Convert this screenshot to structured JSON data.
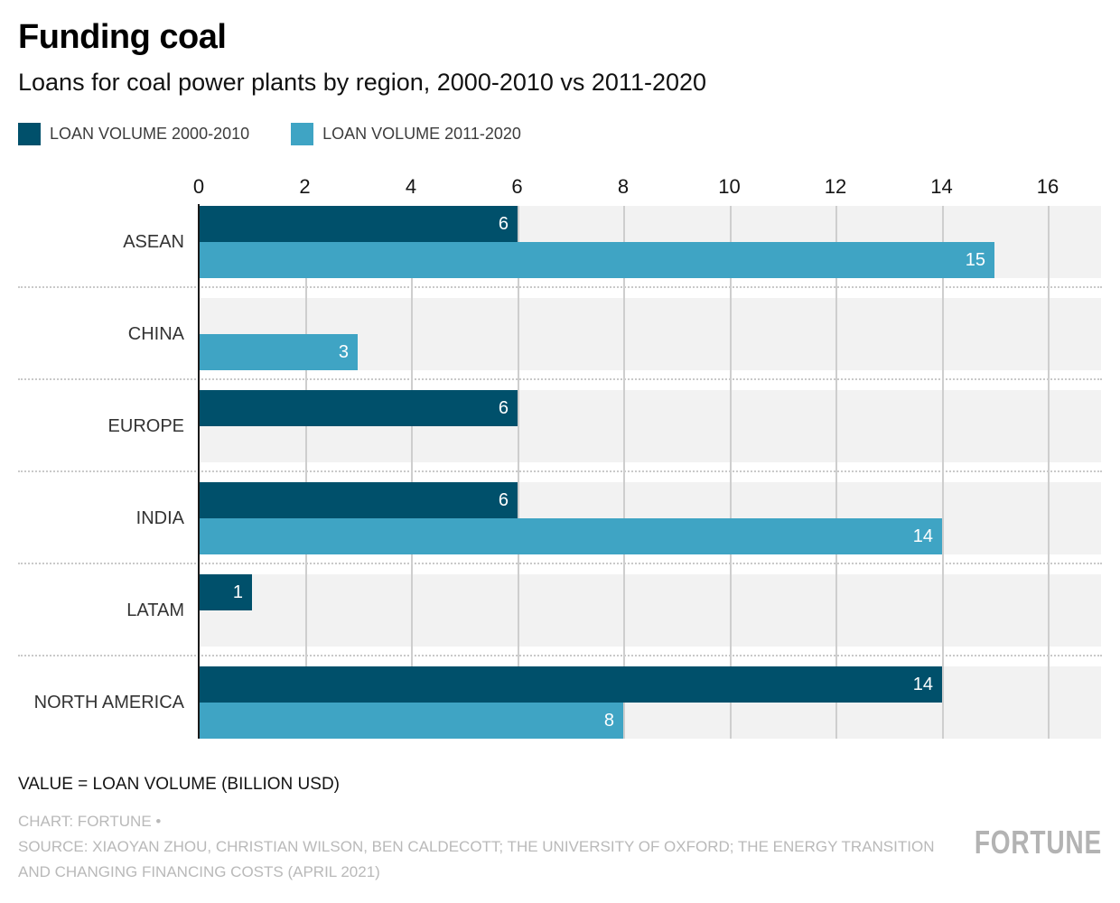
{
  "header": {
    "title": "Funding coal",
    "subtitle": "Loans for coal power plants by region, 2000-2010 vs 2011-2020"
  },
  "legend": [
    {
      "label": "LOAN VOLUME 2000-2010",
      "color": "#00506B"
    },
    {
      "label": "LOAN VOLUME 2011-2020",
      "color": "#3FA4C4"
    }
  ],
  "chart_data": {
    "type": "bar",
    "orientation": "horizontal",
    "title": "Funding coal",
    "subtitle": "Loans for coal power plants by region, 2000-2010 vs 2011-2020",
    "categories": [
      "ASEAN",
      "CHINA",
      "EUROPE",
      "INDIA",
      "LATAM",
      "NORTH AMERICA"
    ],
    "series": [
      {
        "name": "LOAN VOLUME 2000-2010",
        "color": "#00506B",
        "values": [
          6,
          0,
          6,
          6,
          1,
          14
        ]
      },
      {
        "name": "LOAN VOLUME 2011-2020",
        "color": "#3FA4C4",
        "values": [
          15,
          3,
          0,
          14,
          0,
          8
        ]
      }
    ],
    "x_ticks": [
      0,
      2,
      4,
      6,
      8,
      10,
      12,
      14,
      16
    ],
    "xlim": [
      0,
      17
    ],
    "value_unit": "BILLION USD",
    "grid": true,
    "legend_position": "top",
    "track_color": "#f2f2f2",
    "gridline_color": "#cecece"
  },
  "footer": {
    "note": "VALUE = LOAN VOLUME (BILLION USD)",
    "chart_credit": "CHART: FORTUNE •",
    "source": "SOURCE: XIAOYAN ZHOU, CHRISTIAN WILSON, BEN CALDECOTT; THE UNIVERSITY OF OXFORD; THE ENERGY TRANSITION AND CHANGING FINANCING COSTS (APRIL 2021)",
    "logo": "FORTUNE"
  }
}
